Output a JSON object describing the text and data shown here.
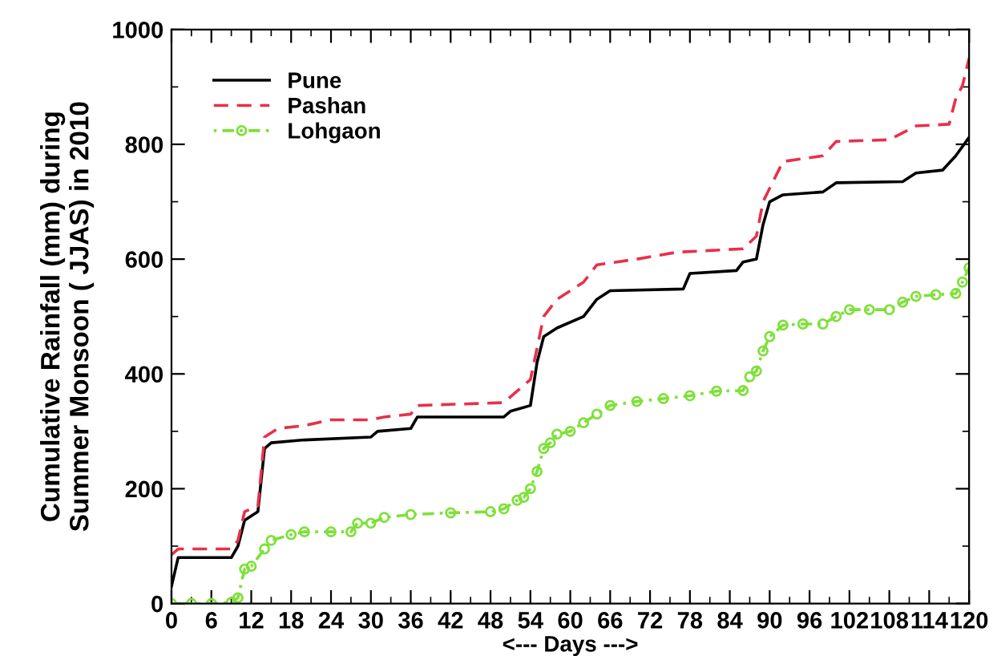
{
  "chart_data": {
    "type": "line",
    "xlabel": "<--- Days --->",
    "ylabel": "Cumulative Rainfall (mm) during\nSummer Monsoon ( JJAS) in 2010",
    "xlim": [
      0,
      120
    ],
    "ylim": [
      0,
      1000
    ],
    "xticks": [
      0,
      6,
      12,
      18,
      24,
      30,
      36,
      42,
      48,
      54,
      60,
      66,
      72,
      78,
      84,
      90,
      96,
      102,
      108,
      114,
      120
    ],
    "yticks": [
      0,
      200,
      400,
      600,
      800,
      1000
    ],
    "grid": false,
    "legend": "top left",
    "series": [
      {
        "name": "Pune",
        "color": "#000000",
        "line_style": "solid",
        "marker": "none",
        "x": [
          0,
          1,
          9,
          10,
          11,
          13,
          14,
          15,
          20,
          30,
          31,
          36,
          37,
          50,
          51,
          54,
          55,
          56,
          58,
          62,
          64,
          66,
          77,
          78,
          85,
          86,
          88,
          89,
          90,
          92,
          98,
          100,
          110,
          112,
          116,
          118,
          120
        ],
        "values": [
          30,
          80,
          80,
          100,
          145,
          160,
          270,
          280,
          285,
          290,
          300,
          305,
          325,
          325,
          335,
          345,
          420,
          465,
          480,
          500,
          530,
          545,
          548,
          575,
          580,
          595,
          600,
          660,
          700,
          712,
          717,
          733,
          735,
          750,
          755,
          780,
          812
        ]
      },
      {
        "name": "Pashan",
        "color": "#e8304a",
        "line_style": "dashed",
        "marker": "none",
        "x": [
          0,
          1,
          9,
          10,
          11,
          13,
          14,
          16,
          20,
          24,
          30,
          32,
          36,
          37,
          50,
          52,
          54,
          56,
          58,
          62,
          64,
          70,
          76,
          86,
          88,
          89,
          92,
          98,
          100,
          108,
          112,
          117,
          118,
          119,
          120
        ],
        "values": [
          85,
          95,
          95,
          110,
          160,
          170,
          290,
          305,
          310,
          320,
          320,
          325,
          330,
          345,
          350,
          370,
          390,
          500,
          530,
          560,
          590,
          600,
          612,
          618,
          640,
          700,
          770,
          780,
          805,
          808,
          832,
          835,
          880,
          902,
          950
        ]
      },
      {
        "name": "Lohgaon",
        "color": "#7fe03a",
        "line_style": "dashdot",
        "marker": "circle",
        "x": [
          0,
          3,
          6,
          9,
          10,
          11,
          12,
          14,
          15,
          18,
          20,
          24,
          27,
          28,
          30,
          32,
          36,
          42,
          48,
          50,
          52,
          53,
          54,
          55,
          56,
          57,
          58,
          60,
          62,
          64,
          66,
          70,
          74,
          78,
          82,
          86,
          87,
          88,
          89,
          90,
          92,
          95,
          98,
          100,
          102,
          105,
          108,
          110,
          112,
          115,
          118,
          119,
          120
        ],
        "values": [
          0,
          0,
          0,
          2,
          10,
          60,
          65,
          95,
          110,
          120,
          125,
          125,
          125,
          140,
          140,
          150,
          155,
          158,
          160,
          165,
          180,
          185,
          200,
          230,
          270,
          280,
          295,
          300,
          315,
          330,
          345,
          352,
          357,
          362,
          370,
          371,
          395,
          405,
          440,
          465,
          485,
          487,
          487,
          500,
          512,
          512,
          512,
          525,
          535,
          538,
          540,
          560,
          585
        ]
      }
    ]
  }
}
